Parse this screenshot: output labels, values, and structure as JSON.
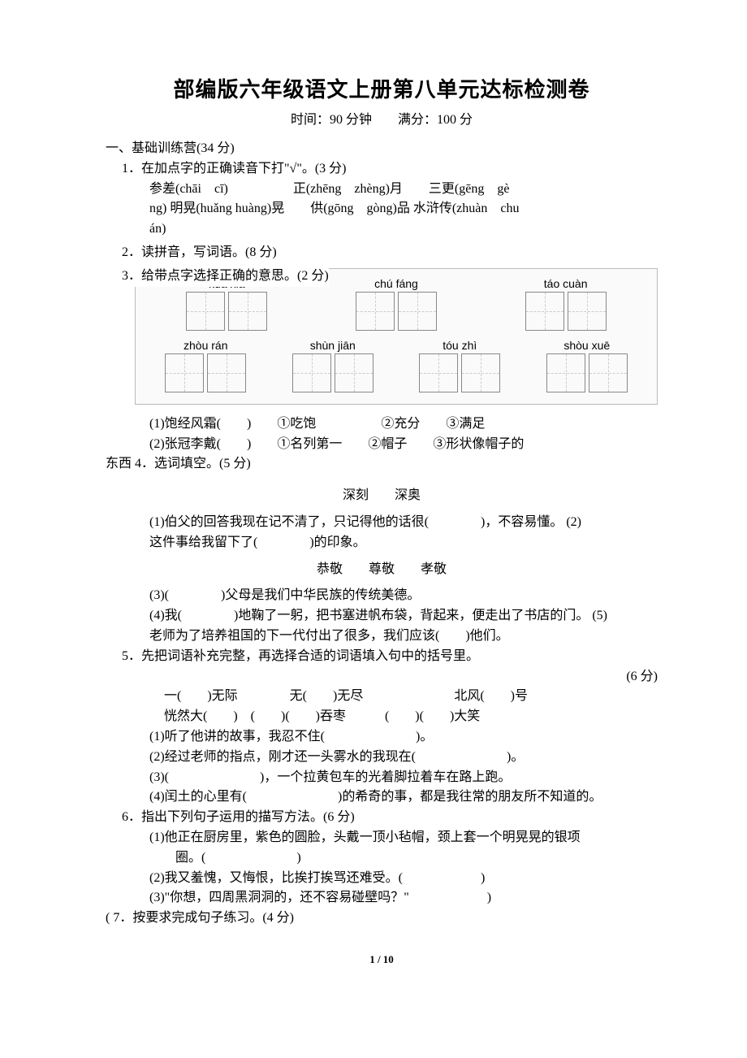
{
  "title": "部编版六年级语文上册第八单元达标检测卷",
  "subtitle": "时间：90 分钟　　满分：100 分",
  "sec1": "一、基础训练营(34 分)",
  "q1": {
    "head": "1．在加点字的正确读音下打\"√\"。(3 分)",
    "l1": "参差(chāi　cī)　　　　　正(zhēng　zhèng)月　　三更(gēng　gè",
    "l2": "ng)  明晃(huǎng huàng)晃　　供(gōng　gòng)品  水浒传(zhuàn　chu",
    "l3": "án)"
  },
  "q2": "2．读拼音，写词语。(8 分)",
  "q3": "3．给带点字选择正确的意思。(2 分)",
  "pinyin": {
    "row1": [
      {
        "py": "kuà  xià",
        "n": 2
      },
      {
        "py": "chú  fáng",
        "n": 2
      },
      {
        "py": "táo  cuàn",
        "n": 2
      }
    ],
    "row2": [
      {
        "py": "zhòu  rán",
        "n": 2
      },
      {
        "py": "shùn  jiān",
        "n": 2
      },
      {
        "py": "tóu  zhì",
        "n": 2
      },
      {
        "py": "shòu  xuē",
        "n": 2
      }
    ]
  },
  "q3items": {
    "i1": "(1)饱经风霜(　　)　　①吃饱　　　　　②充分　　③满足",
    "i2": "(2)张冠李戴(　　)　　①名列第一　　②帽子　　③形状像帽子的"
  },
  "q4head": "东西 4．选词填空。(5 分)",
  "q4pair1": "深刻　　深奥",
  "q4i1": "(1)伯父的回答我现在记不清了，只记得他的话很(　　　　)，不容易懂。 (2)",
  "q4i2": "这件事给我留下了(　　　　)的印象。",
  "q4pair2": "恭敬　　尊敬　　孝敬",
  "q4i3": "(3)(　　　　)父母是我们中华民族的传统美德。",
  "q4i4": "(4)我(　　　　)地鞠了一躬，把书塞进帆布袋，背起来，便走出了书店的门。 (5)",
  "q4i5": "老师为了培养祖国的下一代付出了很多，我们应该(　　)他们。",
  "q5head": "5．先把词语补充完整，再选择合适的词语填入句中的括号里。",
  "q5pts": "(6 分)",
  "q5row1": "一(　　)无际　　　　无(　　)无尽　　　　　　　北风(　　)号",
  "q5row2": "恍然大(　　)　(　　)(　　)吞枣　　　(　　)(　　)大笑",
  "q5i1": "(1)听了他讲的故事，我忍不住(　　　　　　　)。",
  "q5i2": "(2)经过老师的指点，刚才还一头雾水的我现在(　　　　　　　)。",
  "q5i3": "(3)(　　　　　　　)，一个拉黄包车的光着脚拉着车在路上跑。",
  "q5i4": "(4)闰土的心里有(　　　　　　　)的希奇的事，都是我往常的朋友所不知道的。",
  "q6head": "6．指出下列句子运用的描写方法。(6 分)",
  "q6i1a": "(1)他正在厨房里，紫色的圆脸，头戴一顶小毡帽，颈上套一个明晃晃的银项",
  "q6i1b": "　　圈。(　　　　　　　)",
  "q6i2": "(2)我又羞愧，又悔恨，比挨打挨骂还难受。(　　　　　　)",
  "q6i3": "(3)\"你想，四周黑洞洞的，还不容易碰壁吗？\"　　　　　　)",
  "q7head": "( 7．按要求完成句子练习。(4 分)",
  "pagenum": "1 / 10"
}
